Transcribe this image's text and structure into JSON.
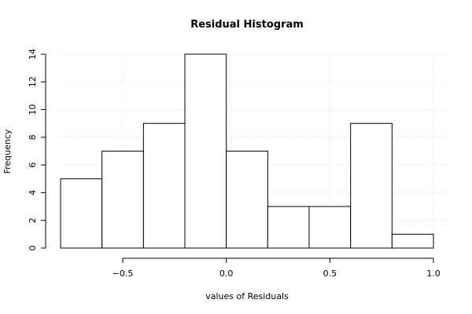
{
  "chart_data": {
    "type": "bar",
    "title": "Residual Histogram",
    "xlabel": "values of Residuals",
    "ylabel": "Frequency",
    "bin_edges": [
      -0.8,
      -0.6,
      -0.4,
      -0.2,
      0.0,
      0.2,
      0.4,
      0.6,
      0.8,
      1.0
    ],
    "values": [
      5,
      7,
      9,
      14,
      7,
      3,
      3,
      9,
      1
    ],
    "xlim": [
      -0.8,
      1.0
    ],
    "ylim": [
      0,
      14
    ],
    "x_ticks": [
      -0.5,
      0.0,
      0.5,
      1.0
    ],
    "x_tick_labels": [
      "−0.5",
      "0.0",
      "0.5",
      "1.0"
    ],
    "y_ticks": [
      0,
      2,
      4,
      6,
      8,
      10,
      12,
      14
    ],
    "y_tick_labels": [
      "0",
      "2",
      "4",
      "6",
      "8",
      "10",
      "12",
      "14"
    ],
    "grid": true
  }
}
